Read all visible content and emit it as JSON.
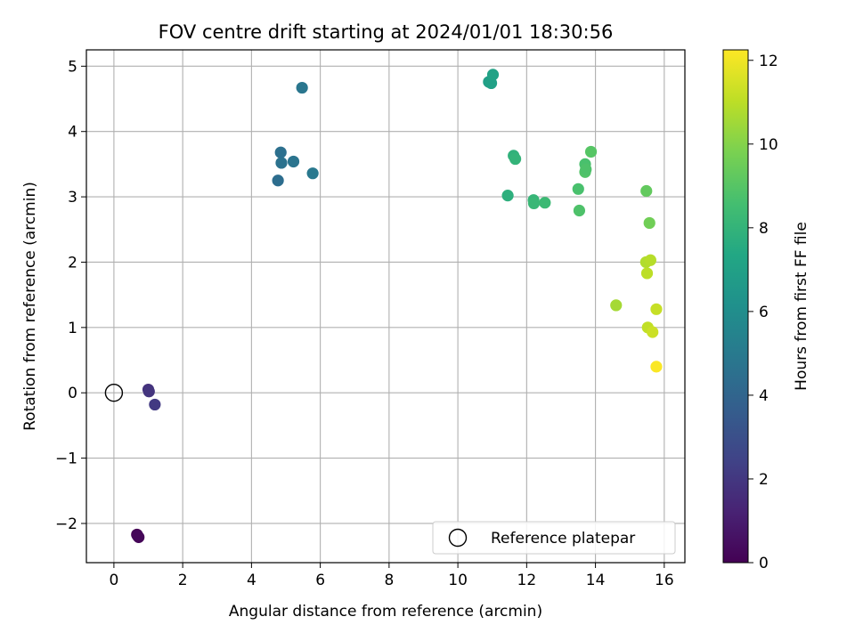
{
  "chart_data": {
    "type": "scatter",
    "title": "FOV centre drift starting at 2024/01/01 18:30:56",
    "xlabel": "Angular distance from reference (arcmin)",
    "ylabel": "Rotation from reference (arcmin)",
    "xlim": [
      -0.8,
      16.6
    ],
    "ylim": [
      -2.6,
      5.25
    ],
    "xticks": [
      0,
      2,
      4,
      6,
      8,
      10,
      12,
      14,
      16
    ],
    "yticks": [
      -2,
      -1,
      0,
      1,
      2,
      3,
      4,
      5
    ],
    "grid": true,
    "legend": {
      "position": "lower-right",
      "entries": [
        "Reference platepar"
      ]
    },
    "reference_point": {
      "x": 0,
      "y": 0,
      "label": "Reference platepar",
      "marker": "open-circle"
    },
    "colorbar": {
      "label": "Hours from first FF file",
      "colormap": "viridis",
      "range": [
        0,
        12.25
      ],
      "ticks": [
        0,
        2,
        4,
        6,
        8,
        10,
        12
      ]
    },
    "points": [
      {
        "x": 0.67,
        "y": -2.17,
        "c": 0.0
      },
      {
        "x": 0.72,
        "y": -2.21,
        "c": 0.1
      },
      {
        "x": 0.69,
        "y": -2.19,
        "c": 0.2
      },
      {
        "x": 1.0,
        "y": 0.05,
        "c": 1.8
      },
      {
        "x": 1.02,
        "y": 0.02,
        "c": 1.9
      },
      {
        "x": 1.19,
        "y": -0.18,
        "c": 2.1
      },
      {
        "x": 4.77,
        "y": 3.25,
        "c": 4.4
      },
      {
        "x": 4.85,
        "y": 3.68,
        "c": 4.5
      },
      {
        "x": 4.87,
        "y": 3.52,
        "c": 4.6
      },
      {
        "x": 5.22,
        "y": 3.54,
        "c": 4.7
      },
      {
        "x": 5.47,
        "y": 4.67,
        "c": 4.8
      },
      {
        "x": 5.78,
        "y": 3.36,
        "c": 4.9
      },
      {
        "x": 10.9,
        "y": 4.76,
        "c": 6.9
      },
      {
        "x": 10.97,
        "y": 4.74,
        "c": 7.0
      },
      {
        "x": 11.02,
        "y": 4.87,
        "c": 7.1
      },
      {
        "x": 11.45,
        "y": 3.02,
        "c": 7.8
      },
      {
        "x": 11.62,
        "y": 3.63,
        "c": 7.9
      },
      {
        "x": 11.67,
        "y": 3.58,
        "c": 8.0
      },
      {
        "x": 12.2,
        "y": 2.95,
        "c": 8.1
      },
      {
        "x": 12.21,
        "y": 2.9,
        "c": 8.2
      },
      {
        "x": 12.53,
        "y": 2.91,
        "c": 8.3
      },
      {
        "x": 13.5,
        "y": 3.12,
        "c": 8.7
      },
      {
        "x": 13.53,
        "y": 2.79,
        "c": 8.8
      },
      {
        "x": 13.7,
        "y": 3.5,
        "c": 8.7
      },
      {
        "x": 13.7,
        "y": 3.38,
        "c": 8.9
      },
      {
        "x": 13.72,
        "y": 3.42,
        "c": 8.8
      },
      {
        "x": 13.87,
        "y": 3.69,
        "c": 9.0
      },
      {
        "x": 15.48,
        "y": 3.09,
        "c": 9.3
      },
      {
        "x": 15.57,
        "y": 2.6,
        "c": 9.6
      },
      {
        "x": 14.6,
        "y": 1.34,
        "c": 10.6
      },
      {
        "x": 15.47,
        "y": 2.0,
        "c": 10.8
      },
      {
        "x": 15.6,
        "y": 2.03,
        "c": 10.9
      },
      {
        "x": 15.5,
        "y": 1.83,
        "c": 11.0
      },
      {
        "x": 15.52,
        "y": 1.0,
        "c": 11.1
      },
      {
        "x": 15.66,
        "y": 0.93,
        "c": 11.3
      },
      {
        "x": 15.77,
        "y": 1.28,
        "c": 11.2
      },
      {
        "x": 15.77,
        "y": 0.4,
        "c": 12.2
      }
    ]
  }
}
